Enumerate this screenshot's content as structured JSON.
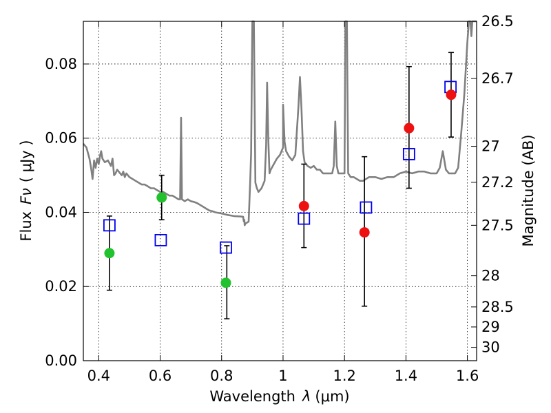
{
  "chart_data": {
    "type": "scatter",
    "xlabel": "Wavelength",
    "xlabel_symbol": "λ",
    "xlabel_unit": "(μm)",
    "ylabel": "Flux",
    "ylabel_symbol": "Fν",
    "ylabel_unit": "( μJy )",
    "y2label": "Magnitude (AB)",
    "xlim": [
      0.35,
      1.63
    ],
    "ylim": [
      0.0,
      0.0915
    ],
    "grid": true,
    "x_ticks": [
      0.4,
      0.6,
      0.8,
      1.0,
      1.2,
      1.4,
      1.6
    ],
    "x_tick_labels": [
      "0.4",
      "0.6",
      "0.8",
      "1",
      "1.2",
      "1.4",
      "1.6"
    ],
    "y_ticks": [
      0.0,
      0.02,
      0.04,
      0.06,
      0.08
    ],
    "y_tick_labels": [
      "0.00",
      "0.02",
      "0.04",
      "0.06",
      "0.08"
    ],
    "mag_ticks": [
      {
        "label": "26.5",
        "flux": 0.0915
      },
      {
        "label": "26.7",
        "flux": 0.0761
      },
      {
        "label": "27",
        "flux": 0.0578
      },
      {
        "label": "27.2",
        "flux": 0.0481
      },
      {
        "label": "27.5",
        "flux": 0.0365
      },
      {
        "label": "28",
        "flux": 0.0229
      },
      {
        "label": "28.5",
        "flux": 0.0145
      },
      {
        "label": "29",
        "flux": 0.0091
      },
      {
        "label": "30",
        "flux": 0.0036
      }
    ],
    "series": [
      {
        "name": "template spectrum",
        "kind": "line",
        "color": "#808080",
        "points": [
          [
            0.35,
            0.0585
          ],
          [
            0.36,
            0.0575
          ],
          [
            0.37,
            0.0545
          ],
          [
            0.375,
            0.052
          ],
          [
            0.38,
            0.049
          ],
          [
            0.385,
            0.054
          ],
          [
            0.39,
            0.052
          ],
          [
            0.395,
            0.0545
          ],
          [
            0.4,
            0.053
          ],
          [
            0.405,
            0.0555
          ],
          [
            0.408,
            0.0565
          ],
          [
            0.412,
            0.0545
          ],
          [
            0.42,
            0.0535
          ],
          [
            0.43,
            0.054
          ],
          [
            0.44,
            0.0525
          ],
          [
            0.445,
            0.0545
          ],
          [
            0.45,
            0.05
          ],
          [
            0.455,
            0.0505
          ],
          [
            0.46,
            0.0515
          ],
          [
            0.47,
            0.0505
          ],
          [
            0.475,
            0.05
          ],
          [
            0.48,
            0.051
          ],
          [
            0.485,
            0.0495
          ],
          [
            0.49,
            0.0505
          ],
          [
            0.5,
            0.0495
          ],
          [
            0.51,
            0.049
          ],
          [
            0.52,
            0.0485
          ],
          [
            0.53,
            0.048
          ],
          [
            0.54,
            0.0475
          ],
          [
            0.55,
            0.0475
          ],
          [
            0.56,
            0.047
          ],
          [
            0.57,
            0.0465
          ],
          [
            0.58,
            0.0465
          ],
          [
            0.59,
            0.046
          ],
          [
            0.6,
            0.0455
          ],
          [
            0.61,
            0.0455
          ],
          [
            0.62,
            0.045
          ],
          [
            0.63,
            0.0445
          ],
          [
            0.64,
            0.0445
          ],
          [
            0.65,
            0.044
          ],
          [
            0.66,
            0.0435
          ],
          [
            0.665,
            0.0435
          ],
          [
            0.668,
            0.0655
          ],
          [
            0.671,
            0.0435
          ],
          [
            0.68,
            0.043
          ],
          [
            0.69,
            0.0435
          ],
          [
            0.7,
            0.043
          ],
          [
            0.71,
            0.0428
          ],
          [
            0.72,
            0.0425
          ],
          [
            0.73,
            0.042
          ],
          [
            0.74,
            0.0415
          ],
          [
            0.75,
            0.041
          ],
          [
            0.76,
            0.0405
          ],
          [
            0.77,
            0.0403
          ],
          [
            0.78,
            0.04
          ],
          [
            0.8,
            0.0397
          ],
          [
            0.82,
            0.0393
          ],
          [
            0.84,
            0.039
          ],
          [
            0.86,
            0.0389
          ],
          [
            0.87,
            0.0388
          ],
          [
            0.872,
            0.0376
          ],
          [
            0.874,
            0.038
          ],
          [
            0.875,
            0.0365
          ],
          [
            0.878,
            0.037
          ],
          [
            0.882,
            0.0372
          ],
          [
            0.888,
            0.0375
          ],
          [
            0.893,
            0.048
          ],
          [
            0.896,
            0.056
          ],
          [
            0.9,
            0.092
          ],
          [
            0.905,
            0.0915
          ],
          [
            0.91,
            0.048
          ],
          [
            0.915,
            0.0465
          ],
          [
            0.92,
            0.0455
          ],
          [
            0.93,
            0.0465
          ],
          [
            0.94,
            0.0485
          ],
          [
            0.945,
            0.058
          ],
          [
            0.948,
            0.075
          ],
          [
            0.952,
            0.06
          ],
          [
            0.956,
            0.0505
          ],
          [
            0.96,
            0.0515
          ],
          [
            0.97,
            0.053
          ],
          [
            0.98,
            0.0545
          ],
          [
            0.99,
            0.0555
          ],
          [
            1.0,
            0.0575
          ],
          [
            1.0,
            0.069
          ],
          [
            1.005,
            0.059
          ],
          [
            1.01,
            0.0565
          ],
          [
            1.02,
            0.055
          ],
          [
            1.03,
            0.054
          ],
          [
            1.04,
            0.0555
          ],
          [
            1.05,
            0.0685
          ],
          [
            1.055,
            0.0765
          ],
          [
            1.06,
            0.068
          ],
          [
            1.065,
            0.0565
          ],
          [
            1.07,
            0.0535
          ],
          [
            1.08,
            0.0525
          ],
          [
            1.09,
            0.052
          ],
          [
            1.1,
            0.0525
          ],
          [
            1.11,
            0.0515
          ],
          [
            1.12,
            0.0515
          ],
          [
            1.13,
            0.0505
          ],
          [
            1.14,
            0.0505
          ],
          [
            1.15,
            0.0505
          ],
          [
            1.16,
            0.0505
          ],
          [
            1.165,
            0.0525
          ],
          [
            1.17,
            0.0645
          ],
          [
            1.175,
            0.0525
          ],
          [
            1.18,
            0.0505
          ],
          [
            1.19,
            0.0505
          ],
          [
            1.2,
            0.0505
          ],
          [
            1.203,
            0.0915
          ],
          [
            1.208,
            0.0915
          ],
          [
            1.212,
            0.0505
          ],
          [
            1.22,
            0.0495
          ],
          [
            1.23,
            0.0495
          ],
          [
            1.24,
            0.049
          ],
          [
            1.25,
            0.0485
          ],
          [
            1.26,
            0.0485
          ],
          [
            1.27,
            0.049
          ],
          [
            1.28,
            0.0495
          ],
          [
            1.3,
            0.0495
          ],
          [
            1.32,
            0.049
          ],
          [
            1.34,
            0.0495
          ],
          [
            1.36,
            0.0495
          ],
          [
            1.38,
            0.0505
          ],
          [
            1.4,
            0.051
          ],
          [
            1.42,
            0.0505
          ],
          [
            1.44,
            0.051
          ],
          [
            1.46,
            0.051
          ],
          [
            1.48,
            0.0505
          ],
          [
            1.5,
            0.0505
          ],
          [
            1.51,
            0.052
          ],
          [
            1.52,
            0.0565
          ],
          [
            1.53,
            0.0515
          ],
          [
            1.54,
            0.0505
          ],
          [
            1.56,
            0.0505
          ],
          [
            1.57,
            0.052
          ],
          [
            1.58,
            0.0615
          ],
          [
            1.59,
            0.072
          ],
          [
            1.6,
            0.086
          ],
          [
            1.605,
            0.0915
          ],
          [
            1.61,
            0.0915
          ],
          [
            1.613,
            0.0875
          ],
          [
            1.616,
            0.0915
          ],
          [
            1.63,
            0.0915
          ]
        ]
      },
      {
        "name": "model photometry",
        "kind": "markers",
        "marker": "open-square",
        "color": "#0000ee",
        "points": [
          [
            0.435,
            0.0365
          ],
          [
            0.602,
            0.0325
          ],
          [
            0.814,
            0.0305
          ],
          [
            1.068,
            0.0383
          ],
          [
            1.27,
            0.0413
          ],
          [
            1.41,
            0.0557
          ],
          [
            1.545,
            0.0738
          ]
        ]
      },
      {
        "name": "detections (green)",
        "kind": "markers",
        "marker": "filled-circle",
        "color": "#22c22f",
        "points": [
          [
            0.435,
            0.029
          ],
          [
            0.605,
            0.044
          ],
          [
            0.814,
            0.021
          ]
        ]
      },
      {
        "name": "detections (red)",
        "kind": "markers",
        "marker": "filled-circle",
        "color": "#ee1111",
        "points": [
          [
            1.068,
            0.0417
          ],
          [
            1.265,
            0.0346
          ],
          [
            1.41,
            0.0627
          ],
          [
            1.547,
            0.0717
          ]
        ]
      }
    ],
    "error_bars": [
      {
        "x": 0.435,
        "low": 0.019,
        "high": 0.039
      },
      {
        "x": 0.605,
        "low": 0.038,
        "high": 0.05
      },
      {
        "x": 0.817,
        "low": 0.0113,
        "high": 0.031
      },
      {
        "x": 1.068,
        "low": 0.0305,
        "high": 0.053
      },
      {
        "x": 1.265,
        "low": 0.0147,
        "high": 0.055
      },
      {
        "x": 1.41,
        "low": 0.0465,
        "high": 0.0793
      },
      {
        "x": 1.547,
        "low": 0.0603,
        "high": 0.0831
      }
    ]
  }
}
